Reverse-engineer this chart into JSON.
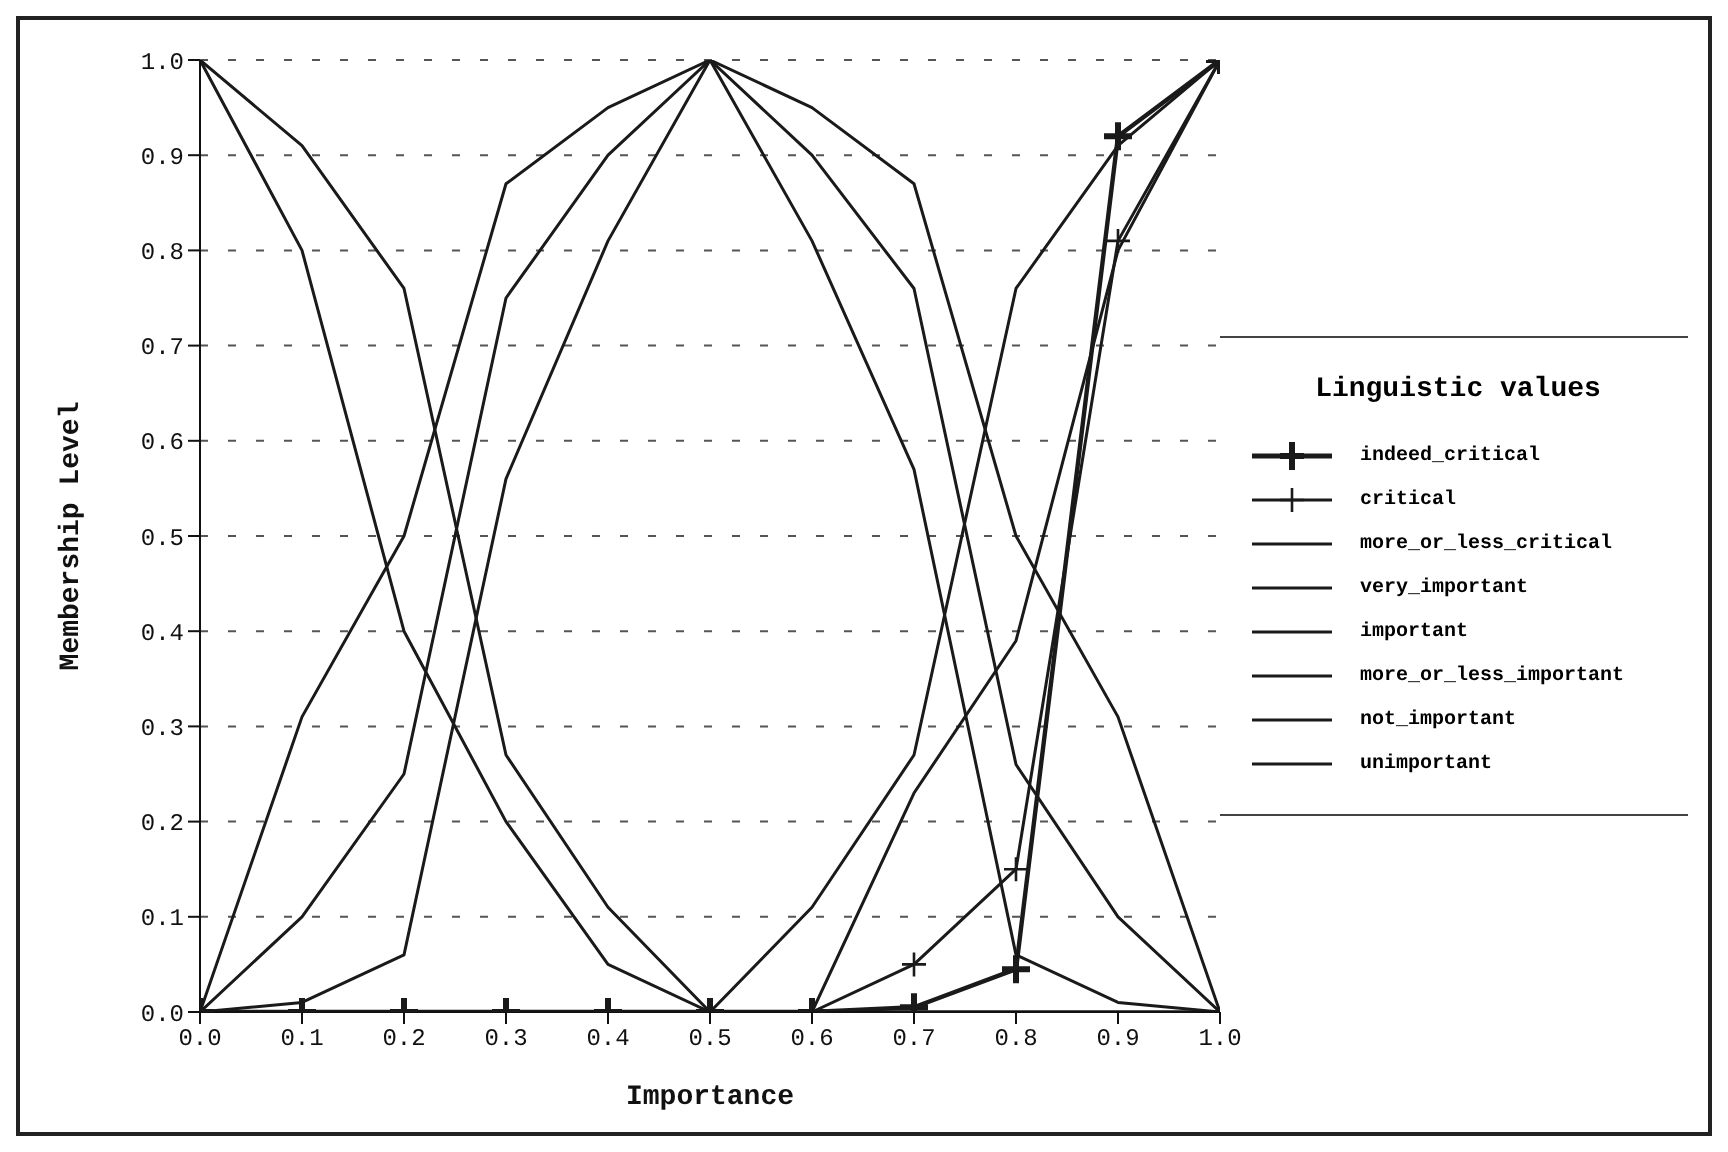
{
  "chart_data": {
    "type": "line",
    "xlabel": "Importance",
    "ylabel": "Membership Level",
    "legend_title": "Linguistic values",
    "legend": "right",
    "grid": "y",
    "line_style": "solid",
    "x": [
      0,
      0.1,
      0.2,
      0.3,
      0.4,
      0.5,
      0.6,
      0.7,
      0.8,
      0.9,
      1
    ],
    "xlim": [
      0,
      1
    ],
    "ylim": [
      0,
      1
    ],
    "xticks": [
      {
        "value": 0,
        "label": "0.0"
      },
      {
        "value": 0.1,
        "label": "0.1"
      },
      {
        "value": 0.2,
        "label": "0.2"
      },
      {
        "value": 0.3,
        "label": "0.3"
      },
      {
        "value": 0.4,
        "label": "0.4"
      },
      {
        "value": 0.5,
        "label": "0.5"
      },
      {
        "value": 0.6,
        "label": "0.6"
      },
      {
        "value": 0.7,
        "label": "0.7"
      },
      {
        "value": 0.8,
        "label": "0.8"
      },
      {
        "value": 0.9,
        "label": "0.9"
      },
      {
        "value": 1,
        "label": "1.0"
      }
    ],
    "yticks": [
      {
        "value": 0,
        "label": "0.0"
      },
      {
        "value": 0.1,
        "label": "0.1"
      },
      {
        "value": 0.2,
        "label": "0.2"
      },
      {
        "value": 0.3,
        "label": "0.3"
      },
      {
        "value": 0.4,
        "label": "0.4"
      },
      {
        "value": 0.5,
        "label": "0.5"
      },
      {
        "value": 0.6,
        "label": "0.6"
      },
      {
        "value": 0.7,
        "label": "0.7"
      },
      {
        "value": 0.8,
        "label": "0.8"
      },
      {
        "value": 0.9,
        "label": "0.9"
      },
      {
        "value": 1,
        "label": "1.0"
      }
    ],
    "series": [
      {
        "name": "indeed_critical",
        "color": "#1a1a1a",
        "marker": "cross",
        "values": [
          0,
          0,
          0,
          0,
          0,
          0,
          0,
          0.005,
          0.045,
          0.92,
          1
        ]
      },
      {
        "name": "critical",
        "color": "#1a1a1a",
        "marker": "cross",
        "values": [
          0,
          0,
          0,
          0,
          0,
          0,
          0,
          0.05,
          0.15,
          0.81,
          1
        ]
      },
      {
        "name": "more_or_less_critical",
        "color": "#1a1a1a",
        "marker": "none",
        "values": [
          0,
          0,
          0,
          0,
          0,
          0,
          0.11,
          0.27,
          0.76,
          0.91,
          1
        ]
      },
      {
        "name": "very_important",
        "color": "#1a1a1a",
        "marker": "none",
        "values": [
          0,
          0.01,
          0.06,
          0.56,
          0.81,
          1,
          0.81,
          0.57,
          0.06,
          0.01,
          0
        ]
      },
      {
        "name": "important",
        "color": "#1a1a1a",
        "marker": "none",
        "values": [
          0,
          0.1,
          0.25,
          0.75,
          0.9,
          1,
          0.9,
          0.76,
          0.26,
          0.1,
          0
        ]
      },
      {
        "name": "more_or_less_important",
        "color": "#1a1a1a",
        "marker": "none",
        "values": [
          0,
          0.31,
          0.5,
          0.87,
          0.95,
          1,
          0.95,
          0.87,
          0.5,
          0.31,
          0
        ]
      },
      {
        "name": "not_important",
        "color": "#1a1a1a",
        "marker": "none",
        "values": [
          1,
          0.91,
          0.76,
          0.27,
          0.11,
          0,
          0,
          0,
          0,
          0,
          0
        ]
      },
      {
        "name": "unimportant",
        "color": "#1a1a1a",
        "marker": "none",
        "values": [
          1,
          0.8,
          0.4,
          0.2,
          0.05,
          0,
          0,
          0,
          0,
          0,
          0
        ]
      },
      {
        "color": "#1a1a1a",
        "marker": "none",
        "values": [
          0,
          0,
          0,
          0,
          0,
          0,
          0,
          0.23,
          0.39,
          0.8,
          1
        ]
      }
    ]
  }
}
